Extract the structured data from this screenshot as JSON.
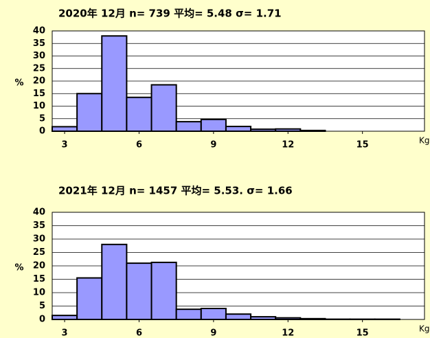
{
  "chart_data": [
    {
      "type": "histogram",
      "title": "2020年 12月  n= 739 平均= 5.48 σ= 1.71",
      "bins": [
        2.5,
        3.5,
        4.5,
        5.5,
        6.5,
        7.5,
        8.5,
        9.5,
        10.5,
        11.5,
        12.5,
        13.5,
        14.5,
        15.5,
        16.5,
        17.5
      ],
      "values": [
        1.8,
        15,
        38,
        13.5,
        18.5,
        3.8,
        4.7,
        1.9,
        0.8,
        0.9,
        0.3,
        0,
        0,
        0,
        0
      ],
      "color": "#9999ff",
      "xlim": [
        2.5,
        17.5
      ],
      "xticks": [
        3,
        6,
        9,
        12,
        15
      ],
      "ylim": [
        0,
        40
      ],
      "yticks": [
        0,
        5,
        10,
        15,
        20,
        25,
        30,
        35,
        40
      ],
      "ylabel": "%",
      "xlabel": "Kg",
      "grid": true
    },
    {
      "type": "histogram",
      "title": "2021年  12月  n= 1457 平均= 5.53. σ= 1.66",
      "bins": [
        2.5,
        3.5,
        4.5,
        5.5,
        6.5,
        7.5,
        8.5,
        9.5,
        10.5,
        11.5,
        12.5,
        13.5,
        14.5,
        15.5,
        16.5,
        17.5
      ],
      "values": [
        1.5,
        15.5,
        28,
        21,
        21.3,
        3.8,
        4.1,
        2,
        1,
        0.6,
        0.3,
        0.1,
        0.1,
        0.1,
        0
      ],
      "color": "#9999ff",
      "xlim": [
        2.5,
        17.5
      ],
      "xticks": [
        3,
        6,
        9,
        12,
        15
      ],
      "ylim": [
        0,
        40
      ],
      "yticks": [
        0,
        5,
        10,
        15,
        20,
        25,
        30,
        35,
        40
      ],
      "ylabel": "%",
      "xlabel": "Kg",
      "grid": true
    }
  ]
}
